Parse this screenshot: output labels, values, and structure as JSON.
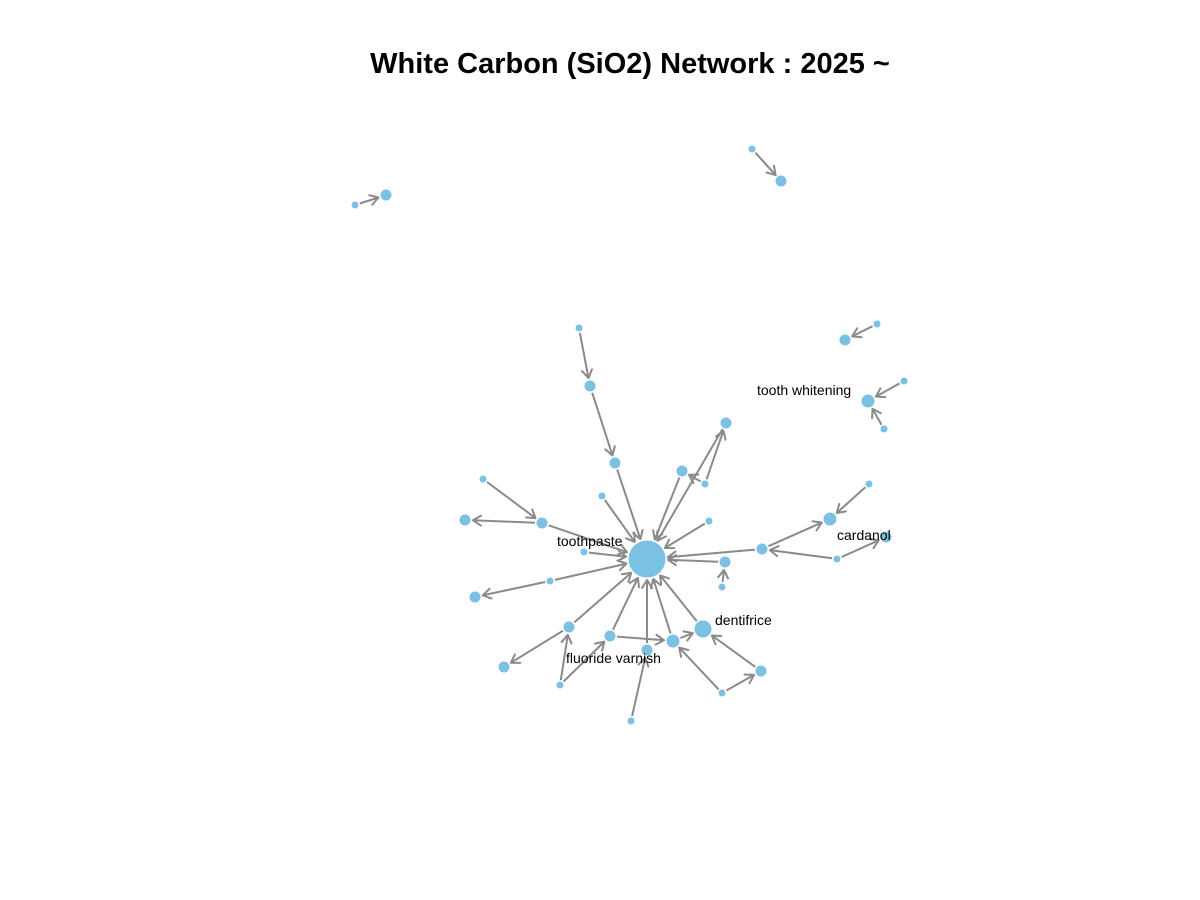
{
  "title": "White Carbon (SiO2) Network : 2025 ~",
  "colors": {
    "node": "#7bc1e3",
    "edge": "#8a8a8a",
    "text": "#000000"
  },
  "labels": {
    "toothpaste": "toothpaste",
    "tooth_whitening": "tooth whitening",
    "cardanol": "cardanol",
    "dentifrice": "dentifrice",
    "fluoride_varnish": "fluoride varnish"
  }
}
